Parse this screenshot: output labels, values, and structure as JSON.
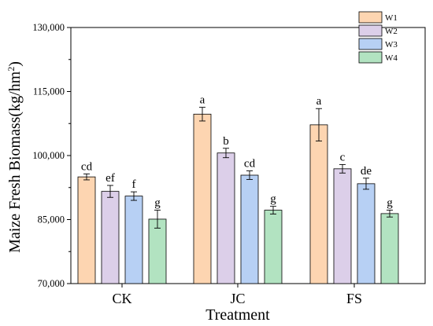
{
  "chart_data": {
    "type": "bar",
    "categories": [
      "CK",
      "JC",
      "FS"
    ],
    "series": [
      {
        "name": "W1",
        "color": "#fdd5b1",
        "values": [
          95000,
          109700,
          107200
        ],
        "errors": [
          700,
          1600,
          3800
        ],
        "letters": [
          "cd",
          "a",
          "a"
        ]
      },
      {
        "name": "W2",
        "color": "#dccfe9",
        "values": [
          91600,
          100600,
          96900
        ],
        "errors": [
          1400,
          1100,
          1000
        ],
        "letters": [
          "ef",
          "b",
          "c"
        ]
      },
      {
        "name": "W3",
        "color": "#b7d0f4",
        "values": [
          90500,
          95400,
          93400
        ],
        "errors": [
          1000,
          1000,
          1300
        ],
        "letters": [
          "f",
          "cd",
          "de"
        ]
      },
      {
        "name": "W4",
        "color": "#b2e3c1",
        "values": [
          85100,
          87200,
          86400
        ],
        "errors": [
          2100,
          900,
          800
        ],
        "letters": [
          "g",
          "g",
          "g"
        ]
      }
    ],
    "xlabel": "Treatment",
    "ylabel": "Maize Fresh Biomass(kg/hm²)",
    "ylabel_main": "Maize Fresh Biomass(kg/hm",
    "ylabel_sup": "2",
    "ylabel_end": ")",
    "ylim": [
      70000,
      130000
    ],
    "yticks": [
      70000,
      85000,
      100000,
      115000,
      130000
    ],
    "ytick_labels": [
      "70,000",
      "85,000",
      "100,000",
      "115,000",
      "130,000"
    ],
    "legend_position": "top-right",
    "grid": false
  }
}
